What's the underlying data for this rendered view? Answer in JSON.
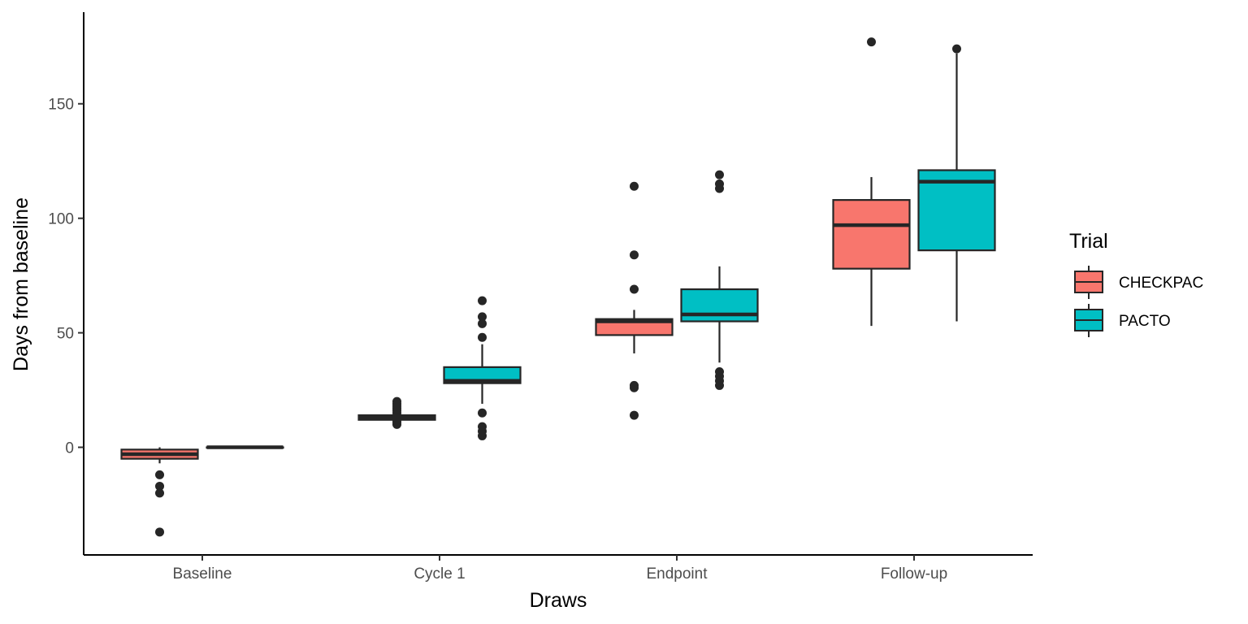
{
  "chart_data": {
    "type": "boxplot",
    "title": "",
    "xlabel": "Draws",
    "ylabel": "Days from baseline",
    "categories": [
      "Baseline",
      "Cycle 1",
      "Endpoint",
      "Follow-up"
    ],
    "ylim": [
      -47,
      190
    ],
    "yticks": [
      0,
      50,
      100,
      150
    ],
    "grid": false,
    "legend": {
      "title": "Trial",
      "position": "right"
    },
    "series": [
      {
        "name": "CHECKPAC",
        "color": "#F8766D",
        "boxes": [
          {
            "whisker_low": -7,
            "q1": -5,
            "median": -3,
            "q3": -1,
            "whisker_high": 0,
            "outliers": [
              -12,
              -17,
              -20,
              -37
            ]
          },
          {
            "whisker_low": 12,
            "q1": 12,
            "median": 13,
            "q3": 14,
            "whisker_high": 14,
            "outliers": [
              10,
              11,
              12,
              15,
              16,
              17,
              18,
              19,
              20
            ]
          },
          {
            "whisker_low": 41,
            "q1": 49,
            "median": 55,
            "q3": 56,
            "whisker_high": 60,
            "outliers": [
              14,
              26,
              27,
              69,
              84,
              114
            ]
          },
          {
            "whisker_low": 53,
            "q1": 78,
            "median": 97,
            "q3": 108,
            "whisker_high": 118,
            "outliers": [
              177
            ]
          }
        ]
      },
      {
        "name": "PACTO",
        "color": "#00BFC4",
        "boxes": [
          {
            "whisker_low": 0,
            "q1": 0,
            "median": 0,
            "q3": 0,
            "whisker_high": 0,
            "outliers": []
          },
          {
            "whisker_low": 19,
            "q1": 28,
            "median": 29,
            "q3": 35,
            "whisker_high": 45,
            "outliers": [
              5,
              7,
              9,
              15,
              48,
              54,
              57,
              64
            ]
          },
          {
            "whisker_low": 37,
            "q1": 55,
            "median": 58,
            "q3": 69,
            "whisker_high": 79,
            "outliers": [
              27,
              29,
              31,
              33,
              113,
              115,
              119
            ]
          },
          {
            "whisker_low": 55,
            "q1": 86,
            "median": 116,
            "q3": 121,
            "whisker_high": 172,
            "outliers": [
              174
            ]
          }
        ]
      }
    ]
  }
}
